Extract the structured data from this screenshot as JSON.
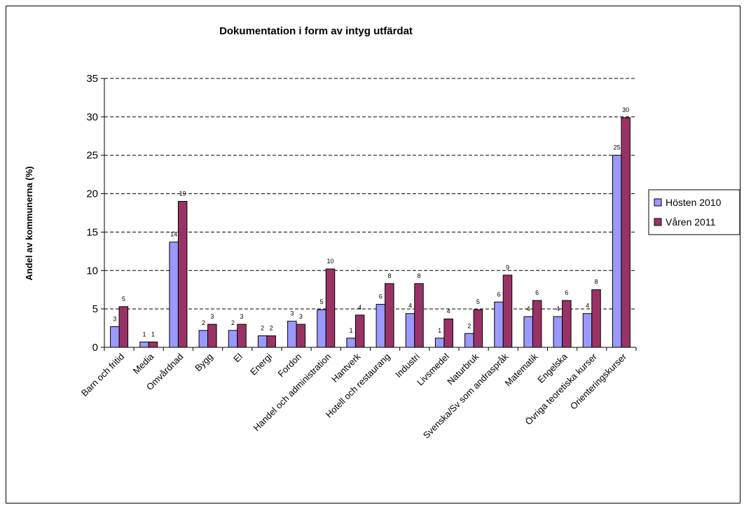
{
  "chart_data": {
    "type": "bar",
    "title": "Dokumentation i form av intyg utfärdat",
    "xlabel": "",
    "ylabel": "Andel av kommunerna (%)",
    "ylim": [
      0,
      35
    ],
    "yticks": [
      0,
      5,
      10,
      15,
      20,
      25,
      30,
      35
    ],
    "grid": true,
    "legend_position": "right",
    "categories": [
      "Barn och fritid",
      "Media",
      "Omvårdnad",
      "Bygg",
      "El",
      "Energi",
      "Fordon",
      "Handel och administration",
      "Hantverk",
      "Hotell och restaurang",
      "Industri",
      "Livsmedel",
      "Naturbruk",
      "Svenska/Sv som andraspråk",
      "Matematik",
      "Engelska",
      "Övriga teoretiska kurser",
      "Orienteringskurser"
    ],
    "series": [
      {
        "name": "Hösten 2010",
        "color": "#9999ff",
        "values": [
          2.7,
          0.7,
          13.7,
          2.2,
          2.2,
          1.5,
          3.4,
          4.9,
          1.2,
          5.6,
          4.4,
          1.2,
          1.8,
          5.9,
          4.0,
          4.0,
          4.4,
          25.0
        ],
        "labels": [
          "3",
          "1",
          "14",
          "2",
          "2",
          "2",
          "3",
          "5",
          "1",
          "6",
          "4",
          "1",
          "2",
          "6",
          "4",
          "4",
          "4",
          "25"
        ]
      },
      {
        "name": "Våren 2011",
        "color": "#993366",
        "values": [
          5.3,
          0.7,
          19.0,
          3.0,
          3.0,
          1.5,
          3.0,
          10.2,
          4.2,
          8.3,
          8.3,
          3.7,
          4.9,
          9.4,
          6.1,
          6.1,
          7.5,
          29.9
        ],
        "labels": [
          "5",
          "1",
          "19",
          "3",
          "3",
          "2",
          "3",
          "10",
          "4",
          "8",
          "8",
          "4",
          "5",
          "9",
          "6",
          "6",
          "8",
          "30"
        ]
      }
    ]
  }
}
